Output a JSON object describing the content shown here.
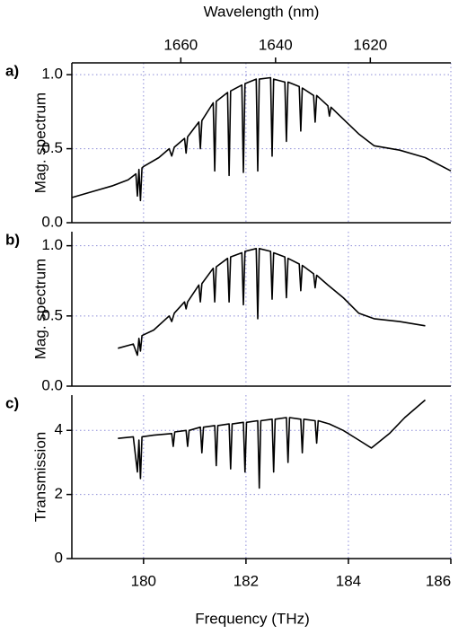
{
  "chart_data": [
    {
      "type": "line",
      "panel_label": "a)",
      "ylabel": "Mag. spectrum",
      "x2label": "Wavelength (nm)",
      "x2lim": [
        1683,
        1603
      ],
      "x2ticks": [
        1660,
        1640,
        1620
      ],
      "xlim": [
        178.6,
        186.0
      ],
      "ylim": [
        0,
        1.08
      ],
      "yticks": [
        {
          "value": 0,
          "label": "0.0"
        },
        {
          "value": 0.5,
          "label": "0.5"
        },
        {
          "value": 1,
          "label": "1.0"
        }
      ],
      "grid": true,
      "x": [
        178.6,
        179.0,
        179.4,
        179.7,
        179.85,
        179.88,
        179.91,
        179.94,
        179.97,
        180.0,
        180.3,
        180.5,
        180.55,
        180.6,
        180.8,
        180.83,
        180.86,
        181.08,
        181.11,
        181.14,
        181.36,
        181.39,
        181.42,
        181.64,
        181.67,
        181.7,
        181.92,
        181.95,
        181.98,
        182.2,
        182.23,
        182.26,
        182.48,
        182.51,
        182.54,
        182.76,
        182.79,
        182.82,
        183.04,
        183.07,
        183.1,
        183.32,
        183.35,
        183.38,
        183.6,
        183.63,
        183.66,
        183.9,
        184.2,
        184.5,
        185.0,
        185.5,
        186.0
      ],
      "series": [
        {
          "color": "#000000",
          "values": [
            0.17,
            0.21,
            0.25,
            0.29,
            0.33,
            0.18,
            0.36,
            0.15,
            0.37,
            0.38,
            0.44,
            0.5,
            0.45,
            0.51,
            0.57,
            0.47,
            0.58,
            0.68,
            0.5,
            0.69,
            0.81,
            0.35,
            0.82,
            0.88,
            0.32,
            0.89,
            0.93,
            0.34,
            0.94,
            0.97,
            0.35,
            0.97,
            0.98,
            0.45,
            0.97,
            0.95,
            0.55,
            0.95,
            0.92,
            0.62,
            0.91,
            0.86,
            0.68,
            0.86,
            0.79,
            0.72,
            0.78,
            0.7,
            0.6,
            0.52,
            0.49,
            0.44,
            0.35
          ]
        }
      ]
    },
    {
      "type": "line",
      "panel_label": "b)",
      "ylabel": "Mag. spectrum",
      "xlim": [
        178.6,
        186.0
      ],
      "ylim": [
        0,
        1.1
      ],
      "yticks": [
        {
          "value": 0,
          "label": "0.0"
        },
        {
          "value": 0.5,
          "label": "0.5"
        },
        {
          "value": 1,
          "label": "1.0"
        }
      ],
      "grid": true,
      "x": [
        179.5,
        179.8,
        179.88,
        179.91,
        179.94,
        179.97,
        180.2,
        180.5,
        180.55,
        180.6,
        180.8,
        180.83,
        180.86,
        181.08,
        181.11,
        181.14,
        181.36,
        181.39,
        181.42,
        181.64,
        181.67,
        181.7,
        181.92,
        181.95,
        181.98,
        182.2,
        182.23,
        182.26,
        182.48,
        182.51,
        182.54,
        182.76,
        182.79,
        182.82,
        183.04,
        183.07,
        183.1,
        183.32,
        183.35,
        183.38,
        183.6,
        183.9,
        184.2,
        184.5,
        185.0,
        185.5
      ],
      "series": [
        {
          "color": "#000000",
          "values": [
            0.27,
            0.3,
            0.22,
            0.34,
            0.25,
            0.36,
            0.4,
            0.5,
            0.46,
            0.52,
            0.6,
            0.55,
            0.6,
            0.72,
            0.6,
            0.73,
            0.84,
            0.6,
            0.85,
            0.91,
            0.6,
            0.92,
            0.95,
            0.58,
            0.96,
            0.98,
            0.48,
            0.98,
            0.96,
            0.62,
            0.95,
            0.92,
            0.63,
            0.91,
            0.87,
            0.68,
            0.86,
            0.8,
            0.7,
            0.79,
            0.72,
            0.63,
            0.52,
            0.48,
            0.46,
            0.43
          ]
        }
      ]
    },
    {
      "type": "line",
      "panel_label": "c)",
      "ylabel": "Transmission",
      "xlabel": "Frequency (THz)",
      "xlim": [
        178.6,
        186.0
      ],
      "xticks": [
        180,
        182,
        184,
        186
      ],
      "ylim": [
        0,
        5.1
      ],
      "yticks": [
        0,
        2,
        4
      ],
      "grid": true,
      "x": [
        179.5,
        179.8,
        179.88,
        179.91,
        179.94,
        179.97,
        180.2,
        180.55,
        180.58,
        180.61,
        180.83,
        180.86,
        180.89,
        181.11,
        181.14,
        181.17,
        181.39,
        181.42,
        181.45,
        181.67,
        181.7,
        181.73,
        181.95,
        181.98,
        182.01,
        182.23,
        182.26,
        182.29,
        182.51,
        182.54,
        182.57,
        182.79,
        182.82,
        182.85,
        183.07,
        183.1,
        183.13,
        183.35,
        183.38,
        183.41,
        183.63,
        183.9,
        184.2,
        184.45,
        184.8,
        185.1,
        185.5
      ],
      "series": [
        {
          "color": "#000000",
          "values": [
            3.75,
            3.8,
            2.7,
            3.7,
            2.5,
            3.8,
            3.85,
            3.9,
            3.5,
            3.95,
            4.0,
            3.5,
            4.0,
            4.1,
            3.3,
            4.1,
            4.15,
            2.9,
            4.15,
            4.2,
            2.8,
            4.2,
            4.25,
            2.7,
            4.25,
            4.3,
            2.2,
            4.3,
            4.35,
            2.7,
            4.35,
            4.4,
            3.0,
            4.4,
            4.35,
            3.3,
            4.35,
            4.3,
            3.6,
            4.3,
            4.2,
            4.0,
            3.7,
            3.45,
            3.9,
            4.4,
            4.95
          ]
        }
      ]
    }
  ]
}
